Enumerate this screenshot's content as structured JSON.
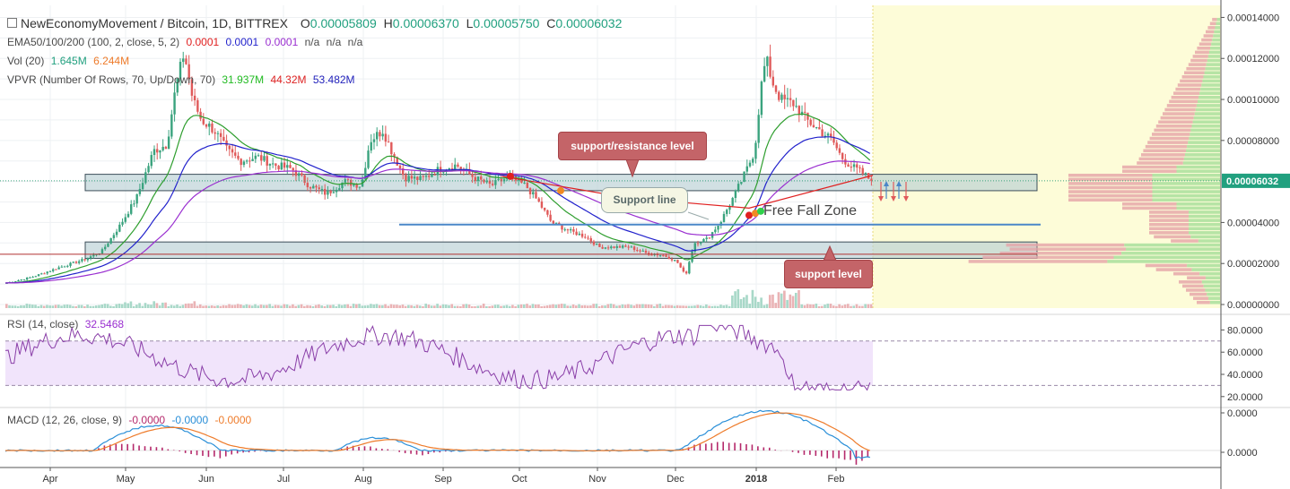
{
  "header": {
    "symbol_title": "NewEconomyMovement / Bitcoin, 1D, BITTREX",
    "open_label": "O",
    "open": "0.00005809",
    "high_label": "H",
    "high": "0.00006370",
    "low_label": "L",
    "low": "0.00005750",
    "close_label": "C",
    "close": "0.00006032"
  },
  "indicators": {
    "ema": {
      "label": "EMA50/100/200 (100, 2, close, 5, 2)",
      "v1": "0.0001",
      "v2": "0.0001",
      "v3": "0.0001",
      "na1": "n/a",
      "na2": "n/a",
      "na3": "n/a",
      "colors": {
        "ema50": "#2e9e2e",
        "ema100": "#2222cc",
        "ema200": "#9a2fd0"
      }
    },
    "vol": {
      "label": "Vol (20)",
      "v1": "1.645M",
      "v2": "6.244M"
    },
    "vpvr": {
      "label": "VPVR (Number Of Rows, 70, Up/Down, 70)",
      "v1": "31.937M",
      "v2": "44.32M",
      "v3": "53.482M"
    },
    "rsi": {
      "label": "RSI (14, close)",
      "value": "32.5468"
    },
    "macd": {
      "label": "MACD (12, 26, close, 9)",
      "hist": "-0.0000",
      "macd": "-0.0000",
      "signal": "-0.0000"
    }
  },
  "annotations": {
    "support_resistance": "support/resistance level",
    "support_line": "Support line",
    "free_fall": "Free Fall Zone",
    "support_level": "support level"
  },
  "chart_data": [
    {
      "type": "candlestick",
      "title": "NewEconomyMovement / Bitcoin, 1D, BITTREX",
      "x_ticks": [
        "Apr",
        "May",
        "Jun",
        "Jul",
        "Aug",
        "Sep",
        "Oct",
        "Nov",
        "Dec",
        "2018",
        "Feb"
      ],
      "y_ticks": [
        "0.00014000",
        "0.00012000",
        "0.00010000",
        "0.00008000",
        "0.00006032",
        "0.00004000",
        "0.00002000",
        "0.00000000"
      ],
      "ylim": [
        0,
        0.000145
      ],
      "last_price": 6.032e-05,
      "close_path": [
        [
          0,
          1.05e-05
        ],
        [
          0.03,
          1.35e-05
        ],
        [
          0.06,
          1.8e-05
        ],
        [
          0.09,
          2.2e-05
        ],
        [
          0.11,
          2.6e-05
        ],
        [
          0.13,
          3.8e-05
        ],
        [
          0.15,
          5.2e-05
        ],
        [
          0.17,
          7.5e-05
        ],
        [
          0.185,
          7.8e-05
        ],
        [
          0.195,
          0.000105
        ],
        [
          0.205,
          0.000123
        ],
        [
          0.215,
          0.0001
        ],
        [
          0.225,
          9e-05
        ],
        [
          0.24,
          8.5e-05
        ],
        [
          0.255,
          7.5e-05
        ],
        [
          0.27,
          7e-05
        ],
        [
          0.29,
          7.2e-05
        ],
        [
          0.31,
          6.8e-05
        ],
        [
          0.33,
          6.6e-05
        ],
        [
          0.35,
          5.8e-05
        ],
        [
          0.37,
          5.4e-05
        ],
        [
          0.39,
          6e-05
        ],
        [
          0.41,
          5.8e-05
        ],
        [
          0.42,
          8e-05
        ],
        [
          0.435,
          8.5e-05
        ],
        [
          0.445,
          7.5e-05
        ],
        [
          0.46,
          6.2e-05
        ],
        [
          0.48,
          6.1e-05
        ],
        [
          0.5,
          6.6e-05
        ],
        [
          0.52,
          6.8e-05
        ],
        [
          0.54,
          6.2e-05
        ],
        [
          0.56,
          5.8e-05
        ],
        [
          0.58,
          6.2e-05
        ],
        [
          0.6,
          5.8e-05
        ],
        [
          0.615,
          5e-05
        ],
        [
          0.63,
          4e-05
        ],
        [
          0.65,
          3.6e-05
        ],
        [
          0.67,
          3.3e-05
        ],
        [
          0.685,
          2.8e-05
        ],
        [
          0.7,
          2.8e-05
        ],
        [
          0.72,
          2.8e-05
        ],
        [
          0.74,
          2.5e-05
        ],
        [
          0.76,
          2.4e-05
        ],
        [
          0.775,
          2.1e-05
        ],
        [
          0.785,
          1.4e-05
        ],
        [
          0.795,
          3e-05
        ],
        [
          0.81,
          3.2e-05
        ],
        [
          0.825,
          4e-05
        ],
        [
          0.84,
          5.2e-05
        ],
        [
          0.855,
          6.5e-05
        ],
        [
          0.865,
          7.5e-05
        ],
        [
          0.872,
          0.000105
        ],
        [
          0.878,
          0.00012
        ],
        [
          0.886,
          0.000108
        ],
        [
          0.895,
          0.0001
        ],
        [
          0.91,
          9.8e-05
        ],
        [
          0.925,
          9e-05
        ],
        [
          0.94,
          8.5e-05
        ],
        [
          0.955,
          8e-05
        ],
        [
          0.965,
          7.2e-05
        ],
        [
          0.975,
          6.8e-05
        ],
        [
          0.99,
          6.4e-05
        ],
        [
          1,
          6.03e-05
        ]
      ]
    },
    {
      "type": "line",
      "title": "RSI (14, close)",
      "y_ticks": [
        "80.0000",
        "60.0000",
        "40.0000",
        "20.0000"
      ],
      "ylim": [
        15,
        90
      ],
      "bands": [
        30,
        70
      ],
      "last_value": 32.5468
    },
    {
      "type": "line",
      "title": "MACD (12, 26, close, 9)",
      "y_ticks": [
        "0.0000",
        "0.0000"
      ]
    }
  ]
}
